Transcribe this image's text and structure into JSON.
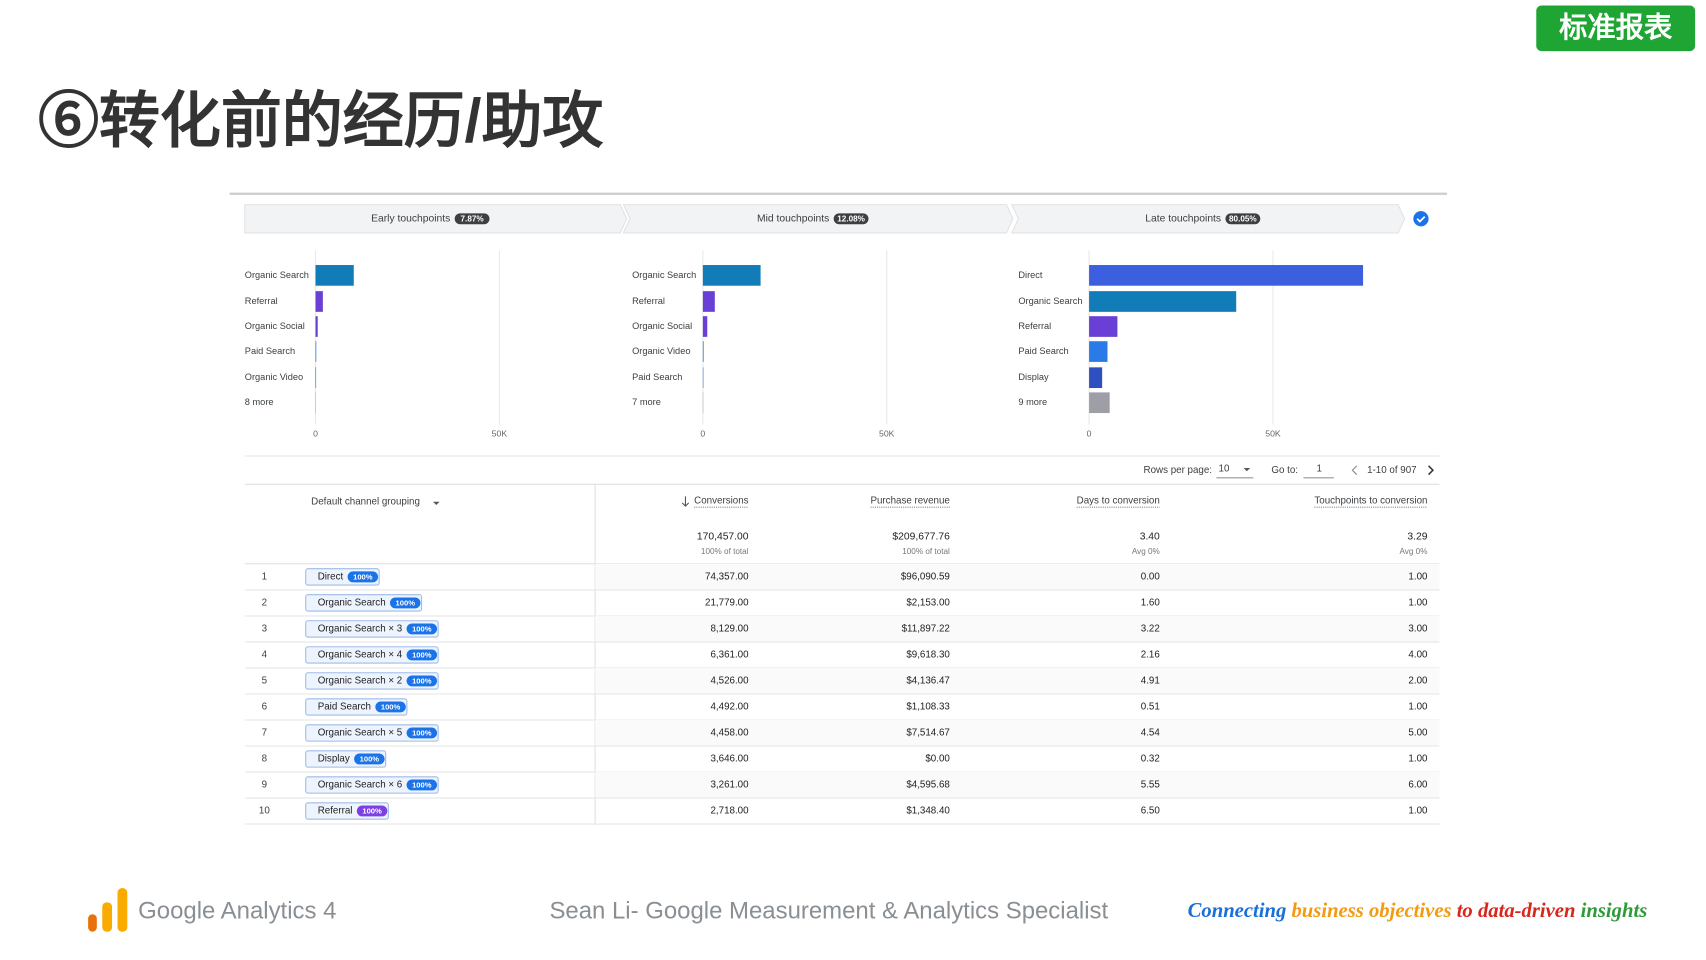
{
  "badge": "标准报表",
  "title": "⑥转化前的经历/助攻",
  "stages": [
    {
      "label": "Early touchpoints",
      "pct": "7.87%"
    },
    {
      "label": "Mid touchpoints",
      "pct": "12.08%"
    },
    {
      "label": "Late touchpoints",
      "pct": "80.05%"
    }
  ],
  "charts": [
    {
      "type": "bar",
      "categories": [
        "Organic Search",
        "Referral",
        "Organic Social",
        "Paid Search",
        "Organic Video",
        "8 more"
      ],
      "values": [
        10400,
        2000,
        600,
        200,
        150,
        100
      ],
      "colors": [
        "#127cb8",
        "#6a3fd6",
        "#6a3fd6",
        "#2a7ae8",
        "#127cb8",
        "#9e9ea6"
      ],
      "xlim": [
        0,
        80000
      ],
      "xticks": [
        0,
        {
          "value": 50000,
          "label": "50K"
        }
      ]
    },
    {
      "type": "bar",
      "categories": [
        "Organic Search",
        "Referral",
        "Organic Social",
        "Organic Video",
        "Paid Search",
        "7 more"
      ],
      "values": [
        15700,
        3250,
        1200,
        200,
        150,
        100
      ],
      "colors": [
        "#127cb8",
        "#6a3fd6",
        "#6a3fd6",
        "#127cb8",
        "#2a7ae8",
        "#9e9ea6"
      ],
      "xlim": [
        0,
        80000
      ],
      "xticks": [
        0,
        {
          "value": 50000,
          "label": "50K"
        }
      ]
    },
    {
      "type": "bar",
      "categories": [
        "Direct",
        "Organic Search",
        "Referral",
        "Paid Search",
        "Display",
        "9 more"
      ],
      "values": [
        74500,
        40000,
        7700,
        5000,
        3550,
        5600
      ],
      "colors": [
        "#3c5fe0",
        "#127cb8",
        "#6a3fd6",
        "#2a7ae8",
        "#2e4fc0",
        "#9e9ea6"
      ],
      "xlim": [
        0,
        80000
      ],
      "xticks": [
        0,
        {
          "value": 50000,
          "label": "50K"
        }
      ]
    }
  ],
  "pagination": {
    "rows_label": "Rows per page:",
    "rows": "10",
    "goto_label": "Go to:",
    "goto": "1",
    "range": "1-10 of 907"
  },
  "table": {
    "headers": [
      "Default channel grouping",
      "Conversions",
      "Purchase revenue",
      "Days to conversion",
      "Touchpoints to conversion"
    ],
    "totals": [
      [
        "170,457.00",
        "100% of total"
      ],
      [
        "$209,677.76",
        "100% of total"
      ],
      [
        "3.40",
        "Avg 0%"
      ],
      [
        "3.29",
        "Avg 0%"
      ]
    ],
    "rows": [
      [
        "1",
        "Direct",
        "100%",
        "74,357.00",
        "$96,090.59",
        "0.00",
        "1.00"
      ],
      [
        "2",
        "Organic Search",
        "100%",
        "21,779.00",
        "$2,153.00",
        "1.60",
        "1.00"
      ],
      [
        "3",
        "Organic Search × 3",
        "100%",
        "8,129.00",
        "$11,897.22",
        "3.22",
        "3.00"
      ],
      [
        "4",
        "Organic Search × 4",
        "100%",
        "6,361.00",
        "$9,618.30",
        "2.16",
        "4.00"
      ],
      [
        "5",
        "Organic Search × 2",
        "100%",
        "4,526.00",
        "$4,136.47",
        "4.91",
        "2.00"
      ],
      [
        "6",
        "Paid Search",
        "100%",
        "4,492.00",
        "$1,108.33",
        "0.51",
        "1.00"
      ],
      [
        "7",
        "Organic Search × 5",
        "100%",
        "4,458.00",
        "$7,514.67",
        "4.54",
        "5.00"
      ],
      [
        "8",
        "Display",
        "100%",
        "3,646.00",
        "$0.00",
        "0.32",
        "1.00"
      ],
      [
        "9",
        "Organic Search × 6",
        "100%",
        "3,261.00",
        "$4,595.68",
        "5.55",
        "6.00"
      ],
      [
        "10",
        "Referral",
        "100%",
        "2,718.00",
        "$1,348.40",
        "6.50",
        "1.00"
      ]
    ],
    "badge_colors": [
      "#1a73e8",
      "#1a73e8",
      "#1a73e8",
      "#1a73e8",
      "#1a73e8",
      "#1a73e8",
      "#1a73e8",
      "#1a73e8",
      "#1a73e8",
      "#7b3fe4"
    ]
  },
  "footer": {
    "product": "Google Analytics 4",
    "author": "Sean Li- Google Measurement & Analytics Specialist",
    "slogan": [
      {
        "text": "Connecting",
        "color": "#1a6fd8"
      },
      {
        "text": "business objectives",
        "color": "#f29a12"
      },
      {
        "text": "to",
        "color": "#d9261c"
      },
      {
        "text": "data-driven",
        "color": "#d9261c"
      },
      {
        "text": "insights",
        "color": "#2e9a3a"
      }
    ]
  }
}
